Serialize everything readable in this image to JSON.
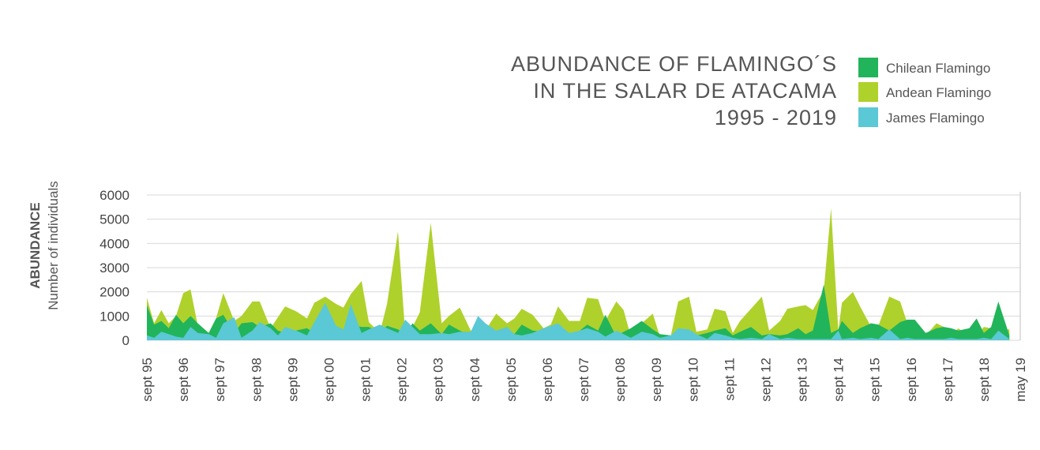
{
  "chart_data": {
    "type": "area",
    "title_lines": [
      "ABUNDANCE OF FLAMINGO´S",
      "IN THE SALAR DE ATACAMA",
      "1995 - 2019"
    ],
    "ylabel_main": "ABUNDANCE",
    "ylabel_sub": "Number of individuals",
    "ylim": [
      0,
      6000
    ],
    "yticks": [
      "0",
      "1000",
      "2000",
      "3000",
      "4000",
      "5000",
      "6000"
    ],
    "grid": true,
    "legend_placement": "top-right",
    "x_labels": [
      "sept 95",
      "sept 96",
      "sept 97",
      "sept 98",
      "sept 99",
      "sept 00",
      "sept 01",
      "sept 02",
      "sept 03",
      "sept 04",
      "sept 05",
      "sept 06",
      "sept 07",
      "sept 08",
      "sept 09",
      "sept 10",
      "sept 11",
      "sept 12",
      "sept 13",
      "sept 14",
      "sept 15",
      "sept 16",
      "sept 17",
      "sept 18",
      "may 19"
    ],
    "x": [
      0.0,
      0.2,
      0.4,
      0.6,
      0.8,
      1.0,
      1.2,
      1.4,
      1.7,
      1.9,
      2.1,
      2.4,
      2.6,
      2.9,
      3.1,
      3.4,
      3.6,
      3.8,
      4.1,
      4.4,
      4.6,
      4.9,
      5.2,
      5.4,
      5.6,
      5.9,
      6.1,
      6.4,
      6.6,
      6.9,
      7.1,
      7.3,
      7.5,
      7.8,
      8.1,
      8.3,
      8.6,
      8.9,
      9.1,
      9.3,
      9.6,
      9.9,
      10.1,
      10.3,
      10.6,
      10.9,
      11.1,
      11.3,
      11.6,
      11.9,
      12.1,
      12.4,
      12.6,
      12.9,
      13.1,
      13.3,
      13.6,
      13.9,
      14.1,
      14.4,
      14.6,
      14.9,
      15.1,
      15.4,
      15.6,
      15.9,
      16.1,
      16.3,
      16.6,
      16.9,
      17.1,
      17.4,
      17.6,
      17.9,
      18.1,
      18.3,
      18.6,
      18.8,
      19.0,
      19.1,
      19.4,
      19.6,
      19.9,
      20.1,
      20.4,
      20.7,
      20.9,
      21.1,
      21.4,
      21.7,
      21.9,
      22.1,
      22.3,
      22.6,
      22.8,
      23.0,
      23.2,
      23.4,
      23.7
    ],
    "series": [
      {
        "name": "Chilean Flamingo",
        "color": "#22b45a",
        "values": [
          1450,
          650,
          800,
          500,
          1050,
          700,
          1000,
          700,
          300,
          900,
          1050,
          300,
          700,
          750,
          550,
          700,
          400,
          300,
          400,
          500,
          300,
          400,
          600,
          300,
          650,
          550,
          550,
          300,
          600,
          450,
          250,
          700,
          400,
          700,
          250,
          650,
          400,
          200,
          300,
          250,
          250,
          450,
          250,
          650,
          400,
          350,
          600,
          500,
          200,
          400,
          650,
          400,
          1050,
          150,
          350,
          500,
          800,
          450,
          250,
          200,
          300,
          350,
          200,
          300,
          400,
          500,
          200,
          350,
          550,
          200,
          250,
          200,
          250,
          500,
          250,
          400,
          2300,
          300,
          450,
          800,
          300,
          500,
          700,
          650,
          400,
          750,
          850,
          850,
          300,
          500,
          550,
          500,
          400,
          500,
          900,
          300,
          550,
          1600,
          200
        ]
      },
      {
        "name": "Andean Flamingo",
        "color": "#afd12c",
        "values": [
          1750,
          700,
          1250,
          700,
          1000,
          1950,
          2100,
          600,
          300,
          900,
          1950,
          800,
          1000,
          1600,
          1600,
          500,
          950,
          1400,
          1200,
          900,
          1550,
          1800,
          1500,
          1350,
          1900,
          2450,
          750,
          300,
          1500,
          4500,
          250,
          550,
          1150,
          4850,
          700,
          1000,
          1350,
          400,
          500,
          400,
          1100,
          700,
          900,
          1300,
          1050,
          500,
          650,
          1400,
          800,
          800,
          1750,
          1700,
          800,
          1600,
          1250,
          150,
          700,
          1100,
          150,
          200,
          1600,
          1800,
          350,
          450,
          1300,
          1200,
          300,
          800,
          1300,
          1800,
          400,
          800,
          1300,
          1400,
          1450,
          1250,
          2050,
          5450,
          400,
          1550,
          2000,
          1400,
          550,
          600,
          1800,
          1600,
          700,
          400,
          200,
          700,
          550,
          200,
          500,
          100,
          200,
          550,
          500,
          450,
          450
        ]
      },
      {
        "name": "James Flamingo",
        "color": "#5bc8d5",
        "values": [
          200,
          100,
          350,
          250,
          150,
          100,
          550,
          300,
          250,
          100,
          700,
          950,
          100,
          400,
          750,
          500,
          200,
          550,
          400,
          200,
          750,
          1550,
          600,
          450,
          1500,
          300,
          450,
          650,
          500,
          300,
          850,
          550,
          250,
          250,
          300,
          250,
          350,
          350,
          1000,
          700,
          400,
          550,
          250,
          200,
          300,
          500,
          600,
          700,
          300,
          400,
          500,
          350,
          150,
          400,
          250,
          100,
          350,
          250,
          100,
          200,
          500,
          450,
          250,
          50,
          300,
          200,
          100,
          50,
          100,
          50,
          250,
          50,
          100,
          50,
          50,
          50,
          50,
          50,
          400,
          50,
          100,
          50,
          100,
          50,
          450,
          50,
          100,
          50,
          50,
          50,
          50,
          100,
          50,
          50,
          50,
          100,
          50,
          400,
          50
        ]
      }
    ]
  }
}
